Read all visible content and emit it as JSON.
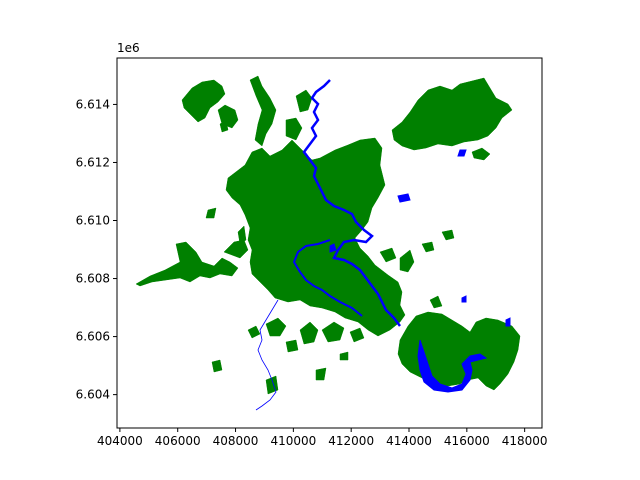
{
  "chart_data": {
    "type": "map",
    "title": "",
    "xlabel": "",
    "ylabel": "",
    "y_offset_label": "1e6",
    "xlim": [
      403900,
      418600
    ],
    "ylim": [
      6602850,
      6615600
    ],
    "x_ticks": [
      404000,
      406000,
      408000,
      410000,
      412000,
      414000,
      416000,
      418000
    ],
    "x_tick_labels": [
      "404000",
      "406000",
      "408000",
      "410000",
      "412000",
      "414000",
      "416000",
      "418000"
    ],
    "y_ticks": [
      6604000,
      6606000,
      6608000,
      6610000,
      6612000,
      6614000
    ],
    "y_tick_labels": [
      "6.604",
      "6.606",
      "6.608",
      "6.610",
      "6.612",
      "6.614"
    ],
    "layers": [
      {
        "name": "green areas",
        "color": "#008000"
      },
      {
        "name": "water",
        "color": "#0000ff"
      }
    ]
  }
}
